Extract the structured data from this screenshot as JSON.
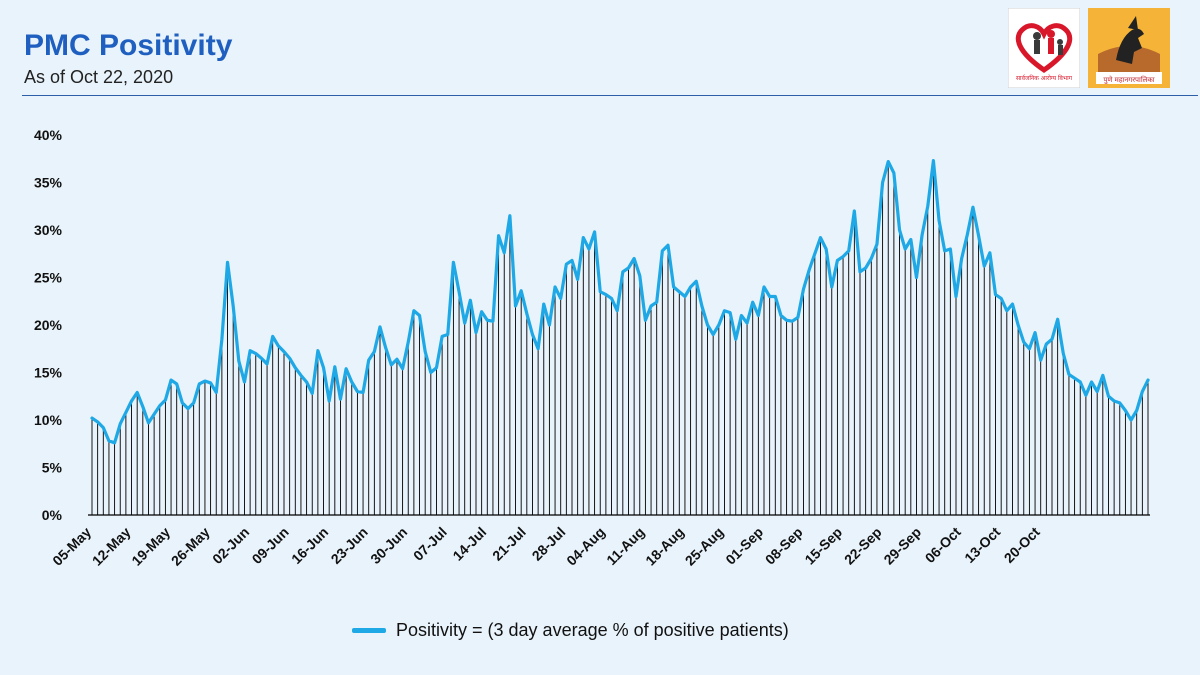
{
  "header": {
    "title": "PMC Positivity",
    "subtitle": "As of Oct 22, 2020"
  },
  "logos": {
    "left": {
      "icon": "public-health-department-logo",
      "caption": "सार्वजनिक आरोग्य विभाग"
    },
    "right": {
      "icon": "pune-municipal-corporation-logo",
      "caption": "पुणे महानगरपालिका"
    }
  },
  "colors": {
    "title": "#1f5fbf",
    "line": "#1ea8e6",
    "bars": "#000000",
    "background": "#e9f3fb"
  },
  "chart_data": {
    "type": "line",
    "title": "",
    "xlabel": "",
    "ylabel": "",
    "ylim": [
      0,
      40
    ],
    "y_ticks": [
      "0%",
      "5%",
      "10%",
      "15%",
      "20%",
      "25%",
      "30%",
      "35%",
      "40%"
    ],
    "y_unit": "%",
    "grid": false,
    "legend_position": "bottom",
    "x_tick_labels": [
      "05-May",
      "12-May",
      "19-May",
      "26-May",
      "02-Jun",
      "09-Jun",
      "16-Jun",
      "23-Jun",
      "30-Jun",
      "07-Jul",
      "14-Jul",
      "21-Jul",
      "28-Jul",
      "04-Aug",
      "11-Aug",
      "18-Aug",
      "25-Aug",
      "01-Sep",
      "08-Sep",
      "15-Sep",
      "22-Sep",
      "29-Sep",
      "06-Oct",
      "13-Oct",
      "20-Oct"
    ],
    "x_start": "05-May",
    "x_end": "22-Oct",
    "series": [
      {
        "name": "Positivity = (3 day average % of positive patients)",
        "values": [
          10.2,
          9.8,
          9.2,
          7.8,
          7.6,
          9.6,
          10.8,
          12.0,
          12.9,
          11.4,
          9.7,
          10.6,
          11.5,
          12.1,
          14.2,
          13.8,
          11.8,
          11.2,
          11.8,
          13.8,
          14.1,
          13.9,
          12.9,
          18.5,
          26.6,
          22.0,
          16.2,
          14.0,
          17.3,
          17.0,
          16.5,
          15.9,
          18.8,
          17.8,
          17.2,
          16.5,
          15.5,
          14.7,
          14.0,
          12.8,
          17.3,
          15.5,
          12.0,
          15.6,
          12.2,
          15.4,
          14.0,
          13.0,
          12.9,
          16.3,
          17.2,
          19.8,
          17.6,
          15.8,
          16.4,
          15.4,
          18.2,
          21.5,
          21.0,
          17.2,
          15.0,
          15.5,
          18.8,
          19.0,
          26.6,
          23.5,
          20.2,
          22.6,
          19.2,
          21.4,
          20.5,
          20.4,
          29.4,
          27.6,
          31.5,
          22.0,
          23.6,
          21.2,
          19.0,
          17.5,
          22.2,
          20.0,
          24.0,
          22.8,
          26.4,
          26.8,
          24.8,
          29.2,
          28.0,
          29.8,
          23.5,
          23.2,
          22.8,
          21.5,
          25.6,
          26.0,
          27.0,
          25.2,
          20.5,
          22.0,
          22.4,
          27.8,
          28.4,
          24.0,
          23.5,
          23.0,
          24.0,
          24.6,
          22.0,
          20.0,
          19.0,
          20.0,
          21.5,
          21.3,
          18.5,
          21.0,
          20.2,
          22.4,
          21.0,
          24.0,
          23.0,
          23.0,
          21.0,
          20.5,
          20.4,
          20.8,
          23.8,
          25.8,
          27.5,
          29.2,
          28.0,
          24.0,
          26.8,
          27.2,
          27.8,
          32.0,
          25.6,
          26.0,
          27.0,
          28.5,
          35.0,
          37.2,
          36.0,
          30.0,
          28.0,
          29.0,
          25.0,
          29.5,
          32.5,
          37.3,
          31.0,
          27.8,
          28.0,
          23.0,
          27.0,
          29.5,
          32.4,
          29.4,
          26.2,
          27.6,
          23.2,
          22.8,
          21.5,
          22.2,
          20.0,
          18.2,
          17.5,
          19.2,
          16.3,
          18.0,
          18.5,
          20.6,
          17.0,
          14.8,
          14.4,
          14.0,
          12.6,
          14.0,
          13.0,
          14.7,
          12.5,
          12.0,
          11.8,
          11.0,
          10.0,
          11.0,
          13.0,
          14.2
        ]
      }
    ]
  }
}
